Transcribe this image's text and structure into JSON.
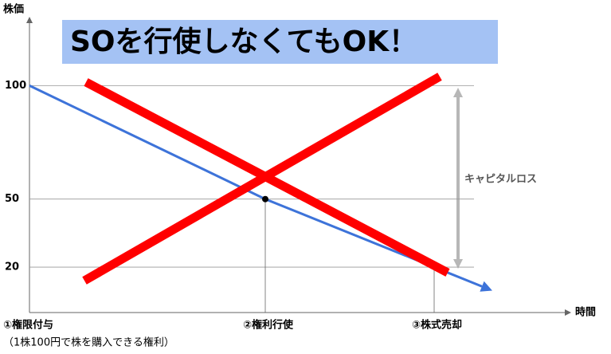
{
  "chart_data": {
    "type": "line",
    "title": "SOを行使しなくてもOK！",
    "y_label": "株価",
    "x_label": "時間",
    "categories": [
      "①権限付与",
      "②権利行使",
      "③株式売却"
    ],
    "category_note": "（1株100円で株を購入できる権利）",
    "values": [
      100,
      50,
      20
    ],
    "color": "#3d73d9",
    "ylim": [
      0,
      130
    ],
    "yticks": [
      100,
      50,
      20
    ],
    "grid": true,
    "annotation": "キャピタルロス"
  }
}
